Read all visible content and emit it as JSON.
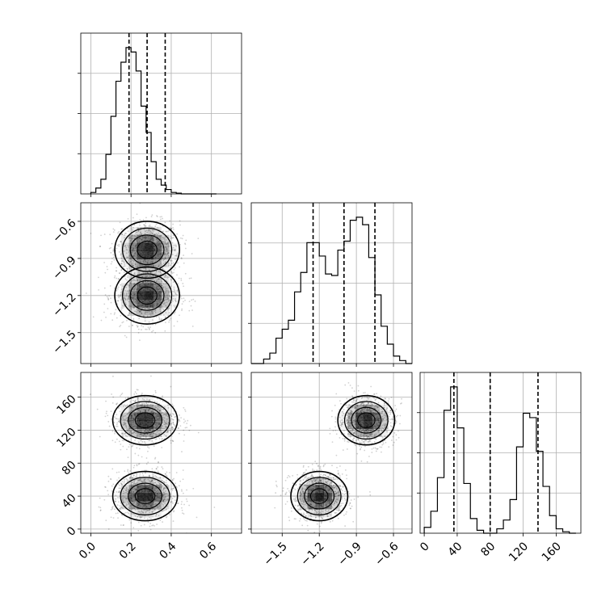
{
  "chart_data": {
    "type": "corner",
    "grid": true,
    "parameters": [
      {
        "id": "p1",
        "range": [
          -0.05,
          0.75
        ],
        "ticks": [
          0.0,
          0.2,
          0.4,
          0.6
        ],
        "tick_labels": [
          "0.0",
          "0.2",
          "0.4",
          "0.6"
        ],
        "quantiles": [
          0.19,
          0.28,
          0.37
        ]
      },
      {
        "id": "p2",
        "range": [
          -1.75,
          -0.45
        ],
        "ticks": [
          -1.5,
          -1.2,
          -0.9,
          -0.6
        ],
        "tick_labels": [
          "−1.5",
          "−1.2",
          "−0.9",
          "−0.6"
        ],
        "quantiles": [
          -1.25,
          -1.0,
          -0.75
        ]
      },
      {
        "id": "p3",
        "range": [
          -5,
          190
        ],
        "ticks": [
          0,
          40,
          80,
          120,
          160
        ],
        "tick_labels": [
          "0",
          "40",
          "80",
          "120",
          "160"
        ],
        "quantiles": [
          36,
          80,
          138
        ]
      }
    ],
    "histograms": [
      {
        "param": "p1",
        "bin_edges": [
          0.0,
          0.025,
          0.05,
          0.075,
          0.1,
          0.125,
          0.15,
          0.175,
          0.2,
          0.225,
          0.25,
          0.275,
          0.3,
          0.325,
          0.35,
          0.375,
          0.4,
          0.425,
          0.45,
          0.475,
          0.5,
          0.525,
          0.55,
          0.575,
          0.6,
          0.625
        ],
        "counts": [
          0.01,
          0.04,
          0.1,
          0.27,
          0.53,
          0.77,
          0.9,
          1.0,
          0.97,
          0.84,
          0.6,
          0.42,
          0.22,
          0.1,
          0.06,
          0.03,
          0.01,
          0.005,
          0.0,
          0.0,
          0.0,
          0.0,
          0.0,
          0.0,
          0.0
        ]
      },
      {
        "param": "p2",
        "bin_edges": [
          -1.75,
          -1.7,
          -1.65,
          -1.6,
          -1.55,
          -1.5,
          -1.45,
          -1.4,
          -1.35,
          -1.3,
          -1.25,
          -1.2,
          -1.15,
          -1.1,
          -1.05,
          -1.0,
          -0.95,
          -0.9,
          -0.85,
          -0.8,
          -0.75,
          -0.7,
          -0.65,
          -0.6,
          -0.55,
          -0.5,
          -0.45
        ],
        "counts": [
          0.0,
          0.0,
          0.03,
          0.07,
          0.17,
          0.23,
          0.29,
          0.48,
          0.61,
          0.81,
          0.81,
          0.72,
          0.6,
          0.59,
          0.76,
          0.82,
          0.96,
          0.98,
          0.93,
          0.71,
          0.46,
          0.25,
          0.13,
          0.05,
          0.02,
          0.0
        ]
      },
      {
        "param": "p3",
        "bin_edges": [
          0,
          8,
          16,
          24,
          32,
          40,
          48,
          56,
          64,
          72,
          80,
          88,
          96,
          104,
          112,
          120,
          128,
          136,
          144,
          152,
          160,
          168,
          176,
          184
        ],
        "counts": [
          0.04,
          0.15,
          0.38,
          0.84,
          1.0,
          0.72,
          0.34,
          0.1,
          0.02,
          0.0,
          0.0,
          0.03,
          0.09,
          0.23,
          0.59,
          0.82,
          0.79,
          0.56,
          0.32,
          0.12,
          0.03,
          0.01,
          0.0
        ]
      }
    ],
    "density_panels": [
      {
        "x": "p1",
        "y": "p2",
        "modes": [
          {
            "mean": [
              0.28,
              -0.83
            ],
            "sd": [
              0.07,
              0.1
            ]
          },
          {
            "mean": [
              0.28,
              -1.2
            ],
            "sd": [
              0.07,
              0.1
            ]
          }
        ]
      },
      {
        "x": "p1",
        "y": "p3",
        "modes": [
          {
            "mean": [
              0.27,
              132
            ],
            "sd": [
              0.07,
              13
            ]
          },
          {
            "mean": [
              0.27,
              40
            ],
            "sd": [
              0.07,
              13
            ]
          }
        ]
      },
      {
        "x": "p2",
        "y": "p3",
        "modes": [
          {
            "mean": [
              -0.82,
              132
            ],
            "sd": [
              0.1,
              13
            ]
          },
          {
            "mean": [
              -1.2,
              40
            ],
            "sd": [
              0.1,
              13
            ]
          }
        ]
      }
    ]
  }
}
